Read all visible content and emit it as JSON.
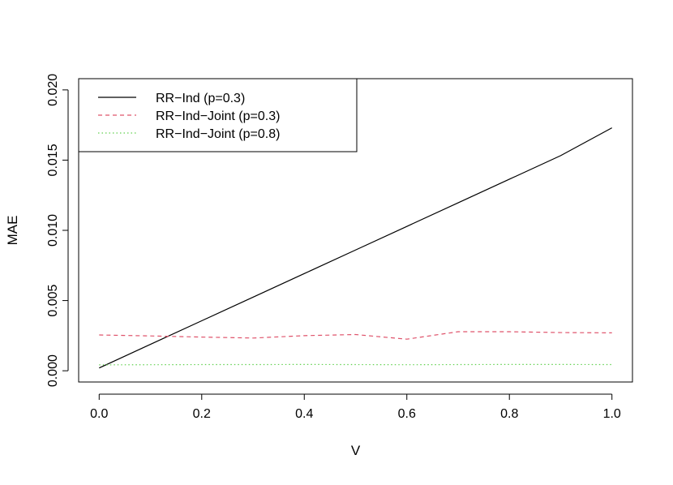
{
  "chart_data": {
    "type": "line",
    "xlabel": "V",
    "ylabel": "MAE",
    "xlim": [
      0.0,
      1.0
    ],
    "ylim": [
      0.0,
      0.02
    ],
    "x_ticks": [
      0.0,
      0.2,
      0.4,
      0.6,
      0.8,
      1.0
    ],
    "x_tick_labels": [
      "0.0",
      "0.2",
      "0.4",
      "0.6",
      "0.8",
      "1.0"
    ],
    "y_ticks": [
      0.0,
      0.005,
      0.01,
      0.015,
      0.02
    ],
    "y_tick_labels": [
      "0.000",
      "0.005",
      "0.010",
      "0.015",
      "0.020"
    ],
    "grid": false,
    "legend_position": "top-left",
    "x": [
      0.0,
      0.1,
      0.2,
      0.3,
      0.4,
      0.5,
      0.6,
      0.7,
      0.8,
      0.9,
      1.0
    ],
    "series": [
      {
        "name": "RR−Ind (p=0.3)",
        "color": "#000000",
        "line_style": "solid",
        "values": [
          0.0002,
          0.00188,
          0.00356,
          0.00524,
          0.00692,
          0.0086,
          0.01028,
          0.01196,
          0.01364,
          0.01532,
          0.0173
        ]
      },
      {
        "name": "RR−Ind−Joint (p=0.3)",
        "color": "#DF536B",
        "line_style": "dashed",
        "values": [
          0.00255,
          0.00248,
          0.0024,
          0.00233,
          0.0025,
          0.00258,
          0.00225,
          0.00278,
          0.00278,
          0.00272,
          0.0027
        ]
      },
      {
        "name": "RR−Ind−Joint (p=0.8)",
        "color": "#61D04F",
        "line_style": "dotted",
        "values": [
          0.00042,
          0.00043,
          0.00044,
          0.00044,
          0.00045,
          0.00044,
          0.00043,
          0.00044,
          0.00045,
          0.00045,
          0.00044
        ]
      }
    ]
  }
}
